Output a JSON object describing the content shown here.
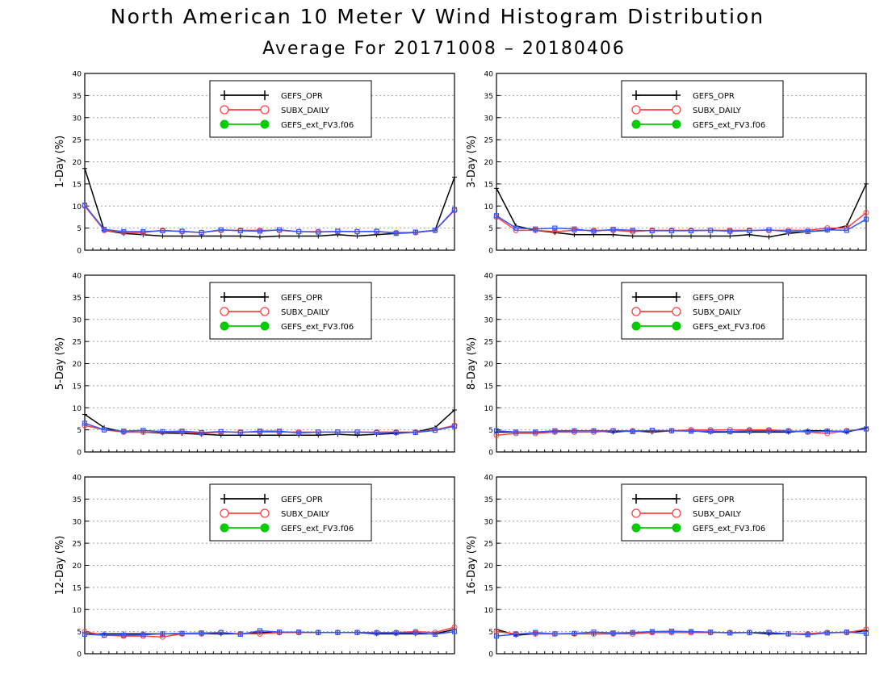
{
  "title": "North American 10 Meter V Wind Histogram Distribution",
  "subtitle": "Average For 20171008 – 20180406",
  "colors": {
    "GEFS_OPR": "#000000",
    "SUBX_DAILY": "#ff4040",
    "GEFS_ext_FV3.f06": "#00cc00",
    "overlay_blue": "#3355ff"
  },
  "chart_data": [
    {
      "type": "line",
      "ylabel": "1-Day (%)",
      "ylim": [
        0,
        40
      ],
      "yticks": [
        0,
        5,
        10,
        15,
        20,
        25,
        30,
        35,
        40
      ],
      "grid": true,
      "legend_position": "top-center",
      "x": [
        1,
        2,
        3,
        4,
        5,
        6,
        7,
        8,
        9,
        10,
        11,
        12,
        13,
        14,
        15,
        16,
        17,
        18,
        19,
        20
      ],
      "series": [
        {
          "name": "GEFS_OPR",
          "values": [
            18.5,
            4.5,
            3.8,
            3.5,
            3.2,
            3.2,
            3.2,
            3.2,
            3.2,
            3.0,
            3.2,
            3.2,
            3.2,
            3.5,
            3.2,
            3.5,
            3.8,
            4.0,
            4.5,
            16.5
          ]
        },
        {
          "name": "SUBX_DAILY",
          "values": [
            10.0,
            4.5,
            4.0,
            4.0,
            4.5,
            4.2,
            4.0,
            4.5,
            4.5,
            4.5,
            4.5,
            4.2,
            4.2,
            4.2,
            4.2,
            4.2,
            4.0,
            4.0,
            4.5,
            9.0
          ]
        },
        {
          "name": "GEFS_ext_FV3.f06",
          "values": [
            10.2,
            4.7,
            4.2,
            4.2,
            4.4,
            4.3,
            4.0,
            4.6,
            4.4,
            4.3,
            4.6,
            4.2,
            4.1,
            4.3,
            4.2,
            4.3,
            3.8,
            4.1,
            4.5,
            9.2
          ]
        }
      ]
    },
    {
      "type": "line",
      "ylabel": "3-Day (%)",
      "ylim": [
        0,
        40
      ],
      "yticks": [
        0,
        5,
        10,
        15,
        20,
        25,
        30,
        35,
        40
      ],
      "grid": true,
      "legend_position": "top-center",
      "x": [
        1,
        2,
        3,
        4,
        5,
        6,
        7,
        8,
        9,
        10,
        11,
        12,
        13,
        14,
        15,
        16,
        17,
        18,
        19,
        20
      ],
      "series": [
        {
          "name": "GEFS_OPR",
          "values": [
            14.0,
            5.5,
            4.5,
            4.0,
            3.5,
            3.5,
            3.5,
            3.2,
            3.2,
            3.2,
            3.2,
            3.2,
            3.2,
            3.5,
            3.0,
            3.8,
            4.2,
            4.5,
            5.5,
            15.0
          ]
        },
        {
          "name": "SUBX_DAILY",
          "values": [
            7.5,
            4.5,
            4.5,
            4.2,
            4.5,
            4.5,
            4.5,
            4.2,
            4.5,
            4.5,
            4.5,
            4.5,
            4.5,
            4.5,
            4.5,
            4.5,
            4.5,
            5.0,
            5.0,
            8.5
          ]
        },
        {
          "name": "GEFS_ext_FV3.f06",
          "values": [
            7.8,
            5.0,
            4.8,
            5.0,
            4.8,
            4.3,
            4.7,
            4.5,
            4.4,
            4.4,
            4.4,
            4.5,
            4.3,
            4.4,
            4.6,
            4.2,
            4.2,
            4.6,
            4.5,
            7.0
          ]
        }
      ]
    },
    {
      "type": "line",
      "ylabel": "5-Day (%)",
      "ylim": [
        0,
        40
      ],
      "yticks": [
        0,
        5,
        10,
        15,
        20,
        25,
        30,
        35,
        40
      ],
      "grid": true,
      "legend_position": "top-center",
      "x": [
        1,
        2,
        3,
        4,
        5,
        6,
        7,
        8,
        9,
        10,
        11,
        12,
        13,
        14,
        15,
        16,
        17,
        18,
        19,
        20
      ],
      "series": [
        {
          "name": "GEFS_OPR",
          "values": [
            8.5,
            5.5,
            4.5,
            4.5,
            4.3,
            4.2,
            4.0,
            3.8,
            3.8,
            3.8,
            3.8,
            3.8,
            3.8,
            4.0,
            3.8,
            4.0,
            4.2,
            4.5,
            5.5,
            9.5
          ]
        },
        {
          "name": "SUBX_DAILY",
          "values": [
            6.0,
            5.0,
            4.5,
            4.5,
            4.5,
            4.5,
            4.2,
            4.5,
            4.5,
            4.5,
            4.5,
            4.5,
            4.5,
            4.5,
            4.5,
            4.5,
            4.5,
            4.5,
            5.0,
            6.0
          ]
        },
        {
          "name": "GEFS_ext_FV3.f06",
          "values": [
            6.5,
            5.0,
            4.7,
            4.9,
            4.6,
            4.7,
            4.4,
            4.6,
            4.4,
            4.7,
            4.7,
            4.3,
            4.5,
            4.5,
            4.5,
            4.4,
            4.4,
            4.4,
            4.9,
            5.8
          ]
        }
      ]
    },
    {
      "type": "line",
      "ylabel": "8-Day (%)",
      "ylim": [
        0,
        40
      ],
      "yticks": [
        0,
        5,
        10,
        15,
        20,
        25,
        30,
        35,
        40
      ],
      "grid": true,
      "legend_position": "top-center",
      "x": [
        1,
        2,
        3,
        4,
        5,
        6,
        7,
        8,
        9,
        10,
        11,
        12,
        13,
        14,
        15,
        16,
        17,
        18,
        19,
        20
      ],
      "series": [
        {
          "name": "GEFS_OPR",
          "values": [
            4.5,
            4.5,
            4.5,
            4.5,
            4.8,
            4.8,
            4.5,
            4.8,
            4.5,
            4.8,
            4.8,
            4.5,
            4.5,
            4.5,
            4.5,
            4.5,
            4.8,
            4.8,
            4.5,
            5.5
          ]
        },
        {
          "name": "SUBX_DAILY",
          "values": [
            3.8,
            4.2,
            4.2,
            4.5,
            4.5,
            4.5,
            4.8,
            4.8,
            4.8,
            4.8,
            5.0,
            5.0,
            5.0,
            5.0,
            5.0,
            4.8,
            4.5,
            4.2,
            4.8,
            5.2
          ]
        },
        {
          "name": "GEFS_ext_FV3.f06",
          "values": [
            4.8,
            4.5,
            4.5,
            4.8,
            4.8,
            4.8,
            4.8,
            4.6,
            4.9,
            4.8,
            4.7,
            4.7,
            4.6,
            4.8,
            4.8,
            4.7,
            4.6,
            4.7,
            4.7,
            5.2
          ]
        }
      ]
    },
    {
      "type": "line",
      "ylabel": "12-Day (%)",
      "ylim": [
        0,
        40
      ],
      "yticks": [
        0,
        5,
        10,
        15,
        20,
        25,
        30,
        35,
        40
      ],
      "grid": true,
      "legend_position": "top-center",
      "x": [
        1,
        2,
        3,
        4,
        5,
        6,
        7,
        8,
        9,
        10,
        11,
        12,
        13,
        14,
        15,
        16,
        17,
        18,
        19,
        20
      ],
      "series": [
        {
          "name": "GEFS_OPR",
          "values": [
            4.5,
            4.5,
            4.5,
            4.5,
            4.5,
            4.5,
            4.5,
            4.5,
            4.5,
            4.8,
            4.8,
            4.8,
            4.8,
            4.8,
            4.8,
            4.5,
            4.5,
            4.5,
            4.5,
            5.5
          ]
        },
        {
          "name": "SUBX_DAILY",
          "values": [
            5.0,
            4.2,
            4.0,
            4.0,
            3.8,
            4.5,
            4.5,
            4.8,
            4.5,
            4.5,
            4.8,
            4.8,
            4.8,
            4.8,
            4.8,
            4.8,
            4.8,
            5.0,
            4.8,
            6.0
          ]
        },
        {
          "name": "GEFS_ext_FV3.f06",
          "values": [
            4.4,
            4.2,
            4.2,
            4.3,
            4.5,
            4.6,
            4.7,
            4.8,
            4.4,
            5.2,
            4.9,
            4.9,
            4.8,
            4.8,
            4.8,
            4.7,
            4.7,
            4.8,
            4.4,
            5.0
          ]
        }
      ]
    },
    {
      "type": "line",
      "ylabel": "16-Day (%)",
      "ylim": [
        0,
        40
      ],
      "yticks": [
        0,
        5,
        10,
        15,
        20,
        25,
        30,
        35,
        40
      ],
      "grid": true,
      "legend_position": "top-center",
      "x": [
        1,
        2,
        3,
        4,
        5,
        6,
        7,
        8,
        9,
        10,
        11,
        12,
        13,
        14,
        15,
        16,
        17,
        18,
        19,
        20
      ],
      "series": [
        {
          "name": "GEFS_OPR",
          "values": [
            5.5,
            4.2,
            4.5,
            4.5,
            4.5,
            4.5,
            4.5,
            4.8,
            4.8,
            4.8,
            5.0,
            4.8,
            4.8,
            4.8,
            4.5,
            4.5,
            4.5,
            4.8,
            4.8,
            5.2
          ]
        },
        {
          "name": "SUBX_DAILY",
          "values": [
            5.0,
            4.5,
            4.5,
            4.5,
            4.5,
            4.5,
            4.5,
            4.5,
            4.8,
            4.8,
            4.8,
            4.8,
            4.8,
            4.8,
            4.8,
            4.5,
            4.5,
            4.8,
            4.8,
            5.5
          ]
        },
        {
          "name": "GEFS_ext_FV3.f06",
          "values": [
            4.0,
            4.4,
            4.8,
            4.5,
            4.6,
            4.9,
            4.7,
            4.8,
            5.0,
            5.1,
            5.0,
            4.9,
            4.7,
            4.8,
            4.8,
            4.5,
            4.3,
            4.7,
            4.9,
            4.6
          ]
        }
      ]
    }
  ]
}
